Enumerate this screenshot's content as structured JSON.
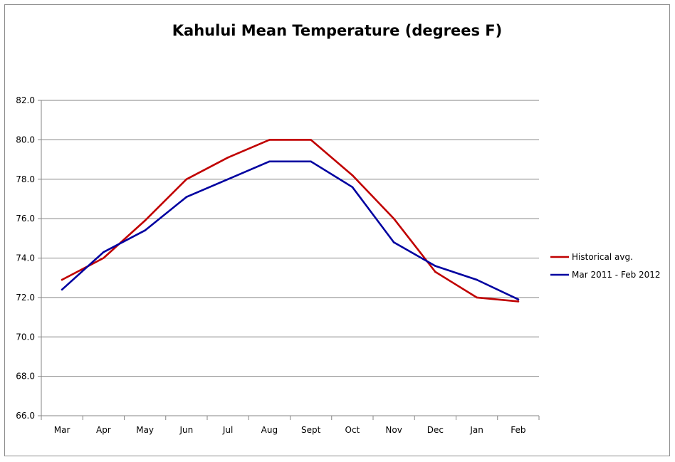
{
  "chart_data": {
    "type": "line",
    "title": "Kahului Mean Temperature (degrees F)",
    "xlabel": "",
    "ylabel": "",
    "categories": [
      "Mar",
      "Apr",
      "May",
      "Jun",
      "Jul",
      "Aug",
      "Sept",
      "Oct",
      "Nov",
      "Dec",
      "Jan",
      "Feb"
    ],
    "ylim": [
      66.0,
      82.0
    ],
    "y_ticks": [
      "66.0",
      "68.0",
      "70.0",
      "72.0",
      "74.0",
      "76.0",
      "78.0",
      "80.0",
      "82.0"
    ],
    "grid": true,
    "legend_position": "right",
    "series": [
      {
        "name": "Historical avg.",
        "color": "#c00000",
        "values": [
          72.9,
          74.0,
          75.9,
          78.0,
          79.1,
          80.0,
          80.0,
          78.2,
          76.0,
          73.3,
          72.0,
          71.8
        ]
      },
      {
        "name": "Mar 2011 - Feb 2012",
        "color": "#0000a0",
        "values": [
          72.4,
          74.3,
          75.4,
          77.1,
          78.0,
          78.9,
          78.9,
          77.6,
          74.8,
          73.6,
          72.9,
          71.9
        ]
      }
    ]
  }
}
